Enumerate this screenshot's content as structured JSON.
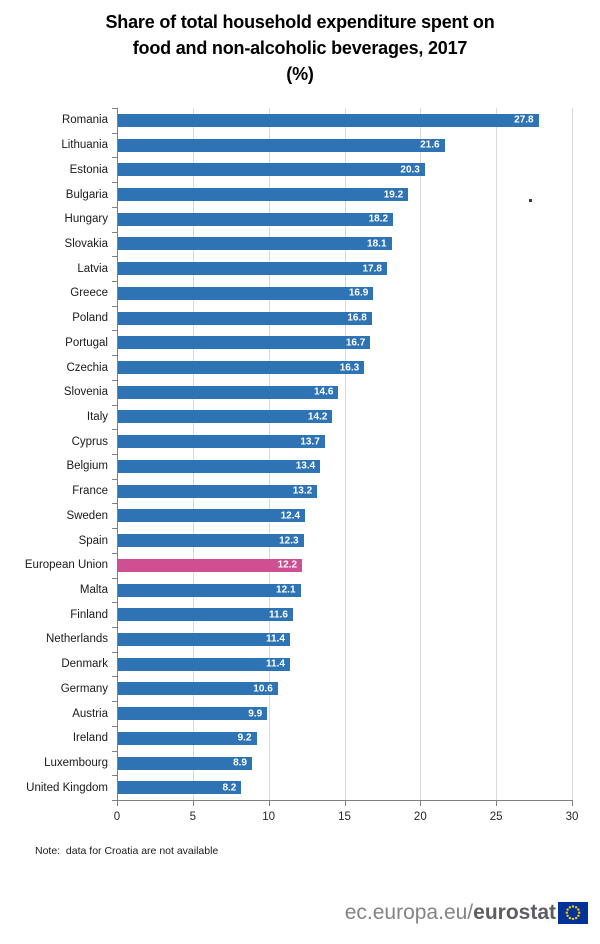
{
  "header": {
    "title_line1": "Share of total household expenditure spent on",
    "title_line2": "food and non-alcoholic beverages, 2017",
    "unit": "(%)"
  },
  "chart_data": {
    "type": "bar",
    "orientation": "horizontal",
    "title": "Share of total household expenditure spent on food and non-alcoholic beverages, 2017 (%)",
    "xlabel": "",
    "ylabel": "",
    "xlim": [
      0,
      30
    ],
    "xticks": [
      0,
      5,
      10,
      15,
      20,
      25,
      30
    ],
    "grid": true,
    "legend": "none",
    "categories": [
      "Romania",
      "Lithuania",
      "Estonia",
      "Bulgaria",
      "Hungary",
      "Slovakia",
      "Latvia",
      "Greece",
      "Poland",
      "Portugal",
      "Czechia",
      "Slovenia",
      "Italy",
      "Cyprus",
      "Belgium",
      "France",
      "Sweden",
      "Spain",
      "European Union",
      "Malta",
      "Finland",
      "Netherlands",
      "Denmark",
      "Germany",
      "Austria",
      "Ireland",
      "Luxembourg",
      "United Kingdom"
    ],
    "values": [
      27.8,
      21.6,
      20.3,
      19.2,
      18.2,
      18.1,
      17.8,
      16.9,
      16.8,
      16.7,
      16.3,
      14.6,
      14.2,
      13.7,
      13.4,
      13.2,
      12.4,
      12.3,
      12.2,
      12.1,
      11.6,
      11.4,
      11.4,
      10.6,
      9.9,
      9.2,
      8.9,
      8.2
    ],
    "highlight_category": "European Union",
    "colors": {
      "bar": "#2e74b5",
      "highlight": "#ce4f92",
      "gridline": "#d9d9d9",
      "axis": "#808080",
      "value_label": "#ffffff",
      "category_label": "#1a1a1a"
    }
  },
  "note": "Note:  data for Croatia are not available",
  "footer": {
    "site_prefix": "ec.europa.eu/",
    "site_bold": "eurostat",
    "flag": {
      "blue": "#003399",
      "yellow": "#ffcc00"
    }
  }
}
